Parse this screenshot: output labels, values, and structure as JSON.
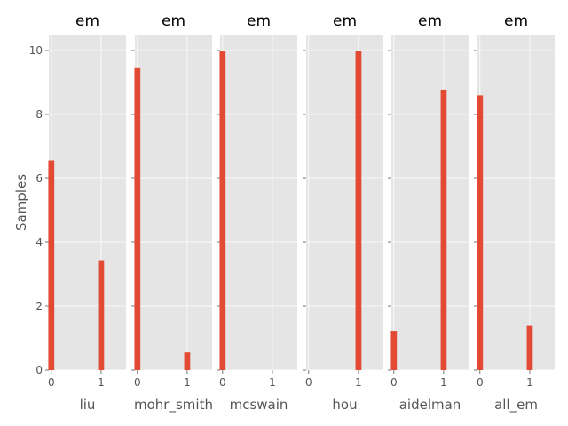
{
  "chart_data": {
    "type": "bar",
    "ylabel": "Samples",
    "ylim": [
      0,
      10.5
    ],
    "yticks": [
      0,
      2,
      4,
      6,
      8,
      10
    ],
    "xticks": [
      0,
      1
    ],
    "xlim": [
      -0.05,
      1.5
    ],
    "bar_width": 0.12,
    "grid": true,
    "bar_color": "#e24a33",
    "panel_background": "#e5e5e5",
    "panels": [
      {
        "title": "em",
        "xlabel": "liu",
        "x": [
          0,
          1
        ],
        "values": [
          6.57,
          3.43
        ]
      },
      {
        "title": "em",
        "xlabel": "mohr_smith",
        "x": [
          0,
          1
        ],
        "values": [
          9.45,
          0.55
        ]
      },
      {
        "title": "em",
        "xlabel": "mcswain",
        "x": [
          0,
          1
        ],
        "values": [
          10.0,
          0.0
        ]
      },
      {
        "title": "em",
        "xlabel": "hou",
        "x": [
          0,
          1
        ],
        "values": [
          0.0,
          10.0
        ]
      },
      {
        "title": "em",
        "xlabel": "aidelman",
        "x": [
          0,
          1
        ],
        "values": [
          1.22,
          8.78
        ]
      },
      {
        "title": "em",
        "xlabel": "all_em",
        "x": [
          0,
          1
        ],
        "values": [
          8.6,
          1.4
        ]
      }
    ]
  }
}
